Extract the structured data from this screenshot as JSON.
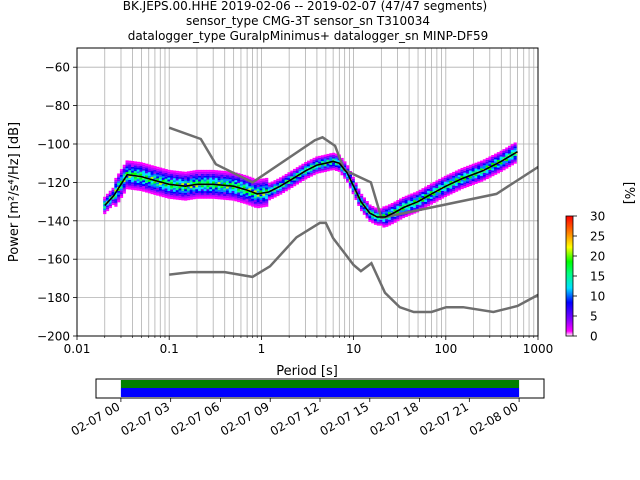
{
  "chart_data": [
    {
      "type": "heatmap",
      "title_lines": [
        "BK.JEPS.00.HHE   2019-02-06 -- 2019-02-07  (47/47 segments)",
        "sensor_type CMG-3T sensor_sn T310034",
        "datalogger_type GuralpMinimus+ datalogger_sn MINP-DF59"
      ],
      "xlabel": "Period [s]",
      "ylabel": "Power [m²/s⁴/Hz] [dB]",
      "x_scale": "log",
      "xlim": [
        0.01,
        1000
      ],
      "ylim": [
        -200,
        -50
      ],
      "x_ticks": [
        {
          "value": 0.01,
          "label": "0.01"
        },
        {
          "value": 0.1,
          "label": "0.1"
        },
        {
          "value": 1,
          "label": "1"
        },
        {
          "value": 10,
          "label": "10"
        },
        {
          "value": 100,
          "label": "100"
        },
        {
          "value": 1000,
          "label": "1000"
        }
      ],
      "y_ticks": [
        {
          "value": -60,
          "label": "−60"
        },
        {
          "value": -80,
          "label": "−80"
        },
        {
          "value": -100,
          "label": "−100"
        },
        {
          "value": -120,
          "label": "−120"
        },
        {
          "value": -140,
          "label": "−140"
        },
        {
          "value": -160,
          "label": "−160"
        },
        {
          "value": -180,
          "label": "−180"
        },
        {
          "value": -200,
          "label": "−200"
        }
      ],
      "grid": true,
      "noise_model_high": {
        "x": [
          0.1,
          0.22,
          0.32,
          0.8,
          3.8,
          4.6,
          6.3,
          7.9,
          15.4,
          20,
          354.8,
          1000
        ],
        "y": [
          -91.5,
          -97.4,
          -110.5,
          -120.0,
          -98.0,
          -96.5,
          -101.0,
          -113.5,
          -120.0,
          -138.5,
          -126.0,
          -112.0
        ]
      },
      "noise_model_low": {
        "x": [
          0.1,
          0.17,
          0.4,
          0.8,
          1.24,
          2.4,
          4.3,
          5.0,
          6.0,
          10.0,
          12.0,
          15.6,
          21.9,
          31.6,
          45.0,
          70.0,
          101.0,
          154.0,
          328.0,
          600.0,
          1000.0
        ],
        "y": [
          -168.0,
          -166.7,
          -166.7,
          -169.2,
          -163.7,
          -148.6,
          -141.1,
          -141.1,
          -149.0,
          -163.0,
          -166.2,
          -162.1,
          -177.5,
          -185.0,
          -187.5,
          -187.5,
          -185.0,
          -185.0,
          -187.5,
          -184.4,
          -178.6
        ]
      },
      "mean_curve": {
        "x": [
          0.02,
          0.025,
          0.03,
          0.035,
          0.05,
          0.07,
          0.1,
          0.15,
          0.2,
          0.3,
          0.5,
          0.7,
          0.9,
          1.2,
          1.6,
          2.2,
          3,
          4,
          5,
          6,
          7,
          8.5,
          10,
          12,
          15,
          18,
          22,
          27,
          35,
          50,
          70,
          100,
          150,
          250,
          400,
          600
        ],
        "y": [
          -132,
          -127,
          -121,
          -116,
          -117,
          -119,
          -121,
          -122,
          -121,
          -121,
          -122,
          -124,
          -126,
          -125,
          -122,
          -118,
          -114,
          -111,
          -110,
          -109,
          -110,
          -115,
          -122,
          -130,
          -136,
          -138,
          -138,
          -136,
          -133,
          -130,
          -126,
          -122,
          -118,
          -114,
          -109,
          -104
        ]
      },
      "colorbar": {
        "label": "[%]",
        "min": 0,
        "max": 30,
        "ticks": [
          {
            "value": 0,
            "label": "0"
          },
          {
            "value": 5,
            "label": "5"
          },
          {
            "value": 10,
            "label": "10"
          },
          {
            "value": 15,
            "label": "15"
          },
          {
            "value": 20,
            "label": "20"
          },
          {
            "value": 25,
            "label": "25"
          },
          {
            "value": 30,
            "label": "30"
          }
        ]
      },
      "colors": {
        "noise_model": "#6e6e6e",
        "mean": "#000000",
        "grid": "#b0b0b0"
      }
    },
    {
      "type": "bar",
      "description_ticks": [
        "02-07 00",
        "02-07 03",
        "02-07 06",
        "02-07 09",
        "02-07 12",
        "02-07 15",
        "02-07 18",
        "02-07 21",
        "02-08 00"
      ],
      "data_coverage": {
        "start": "2019-02-07 00:00",
        "end": "2019-02-08 00:00"
      },
      "axis_range": {
        "start": "2019-02-06 22:30",
        "end": "2019-02-08 01:30"
      },
      "colors": {
        "coverage_top": "#007f00",
        "coverage_bottom": "#0000ff"
      }
    }
  ]
}
